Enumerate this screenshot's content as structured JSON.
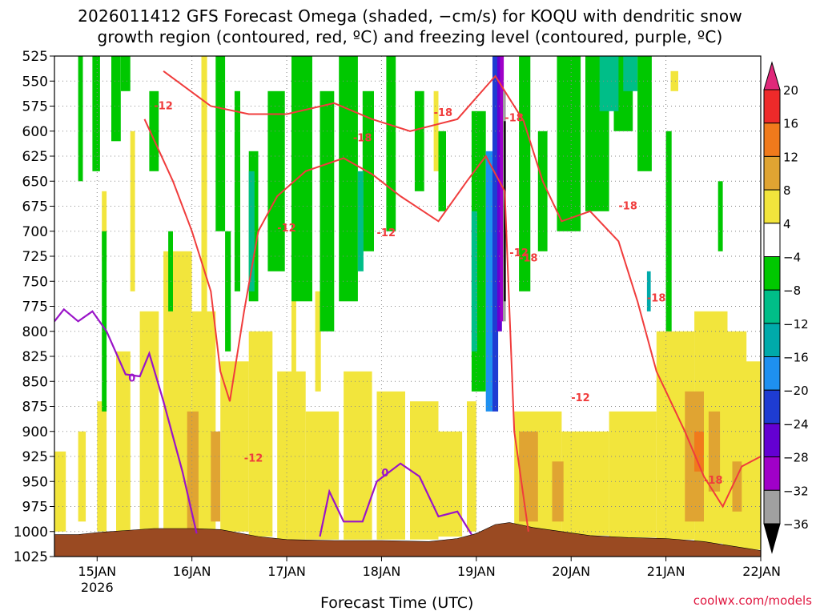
{
  "chart_data": {
    "type": "heatmap",
    "title_line1": "2026011412 GFS Forecast Omega (shaded, −cm/s) for KOQU with dendritic snow",
    "title_line2": "growth region (contoured, red, ºC) and freezing level (contoured, purple, ºC)",
    "xlabel": "Forecast Time (UTC)",
    "credit": "coolwx.com/models",
    "y_ticks": [
      "525",
      "550",
      "575",
      "600",
      "625",
      "650",
      "675",
      "700",
      "725",
      "750",
      "775",
      "800",
      "825",
      "850",
      "875",
      "900",
      "925",
      "950",
      "975",
      "1000",
      "1025"
    ],
    "y_range_hPa": [
      525,
      1025
    ],
    "x_ticks": [
      "15JAN",
      "16JAN",
      "17JAN",
      "18JAN",
      "19JAN",
      "20JAN",
      "21JAN",
      "22JAN"
    ],
    "x_sub_label": "2026",
    "x_range_days": [
      14.55,
      22.0
    ],
    "colorbar": {
      "labels": [
        "20",
        "16",
        "12",
        "8",
        "4",
        "−4",
        "−8",
        "−12",
        "−16",
        "−20",
        "−24",
        "−28",
        "−32",
        "−36"
      ],
      "colors": [
        "#e0287a",
        "#ee2a2a",
        "#f07a1c",
        "#e0a432",
        "#f2e53c",
        "#ffffff",
        "#00c800",
        "#00be88",
        "#00aaaa",
        "#1e90f0",
        "#1e3cd2",
        "#6400d2",
        "#a000c8",
        "#a0a0a0",
        "#000000"
      ]
    },
    "contour_labels_red": [
      "-12",
      "-18",
      "-18",
      "-12",
      "-12",
      "-18",
      "-12",
      "-18",
      "-18",
      "-12",
      "-18",
      "-12",
      "-18"
    ],
    "contour_labels_purple": [
      "0",
      "0"
    ],
    "colors": {
      "red_contour": "#f03c3c",
      "purple_contour": "#9a14c8",
      "terrain": "#9a4a22",
      "grid": "#888888"
    },
    "surface_pressure_profile": [
      [
        14.55,
        1003
      ],
      [
        14.8,
        1003
      ],
      [
        15.0,
        1001
      ],
      [
        15.3,
        999
      ],
      [
        15.6,
        997
      ],
      [
        16.0,
        997
      ],
      [
        16.3,
        998
      ],
      [
        16.7,
        1005
      ],
      [
        17.0,
        1008
      ],
      [
        17.5,
        1009
      ],
      [
        18.0,
        1009
      ],
      [
        18.5,
        1010
      ],
      [
        18.8,
        1007
      ],
      [
        19.0,
        1002
      ],
      [
        19.2,
        993
      ],
      [
        19.35,
        991
      ],
      [
        19.6,
        996
      ],
      [
        19.9,
        1000
      ],
      [
        20.2,
        1004
      ],
      [
        20.6,
        1006
      ],
      [
        21.0,
        1007
      ],
      [
        21.4,
        1010
      ],
      [
        21.8,
        1016
      ],
      [
        22.0,
        1019
      ]
    ],
    "dgz_warm_boundary_-12C": [
      [
        15.5,
        588
      ],
      [
        15.8,
        650
      ],
      [
        16.0,
        700
      ],
      [
        16.2,
        760
      ],
      [
        16.3,
        840
      ],
      [
        16.4,
        870
      ],
      [
        16.55,
        780
      ],
      [
        16.7,
        700
      ],
      [
        16.9,
        665
      ],
      [
        17.2,
        640
      ],
      [
        17.6,
        627
      ],
      [
        17.9,
        643
      ],
      [
        18.2,
        665
      ],
      [
        18.6,
        690
      ],
      [
        18.9,
        650
      ],
      [
        19.1,
        625
      ],
      [
        19.3,
        660
      ],
      [
        19.4,
        900
      ],
      [
        19.55,
        1000
      ]
    ],
    "dgz_cold_boundary_-18C": [
      [
        15.7,
        540
      ],
      [
        16.2,
        575
      ],
      [
        16.6,
        583
      ],
      [
        17.0,
        583
      ],
      [
        17.5,
        572
      ],
      [
        17.9,
        588
      ],
      [
        18.3,
        600
      ],
      [
        18.8,
        588
      ],
      [
        19.2,
        545
      ],
      [
        19.5,
        590
      ],
      [
        19.7,
        650
      ],
      [
        19.9,
        690
      ],
      [
        20.2,
        680
      ],
      [
        20.5,
        710
      ],
      [
        20.7,
        770
      ],
      [
        20.9,
        840
      ],
      [
        21.2,
        900
      ],
      [
        21.4,
        945
      ],
      [
        21.6,
        975
      ],
      [
        21.8,
        935
      ],
      [
        22.0,
        925
      ]
    ],
    "freezing_level_0C_a": [
      [
        14.55,
        790
      ],
      [
        14.65,
        778
      ],
      [
        14.8,
        790
      ],
      [
        14.95,
        780
      ],
      [
        15.1,
        800
      ],
      [
        15.3,
        843
      ],
      [
        15.45,
        845
      ],
      [
        15.55,
        822
      ],
      [
        15.7,
        870
      ],
      [
        15.9,
        940
      ],
      [
        16.05,
        1002
      ]
    ],
    "freezing_level_0C_b": [
      [
        17.35,
        1005
      ],
      [
        17.45,
        960
      ],
      [
        17.6,
        990
      ],
      [
        17.8,
        990
      ],
      [
        17.95,
        950
      ],
      [
        18.2,
        932
      ],
      [
        18.4,
        945
      ],
      [
        18.6,
        985
      ],
      [
        18.8,
        980
      ],
      [
        18.95,
        1003
      ]
    ]
  }
}
